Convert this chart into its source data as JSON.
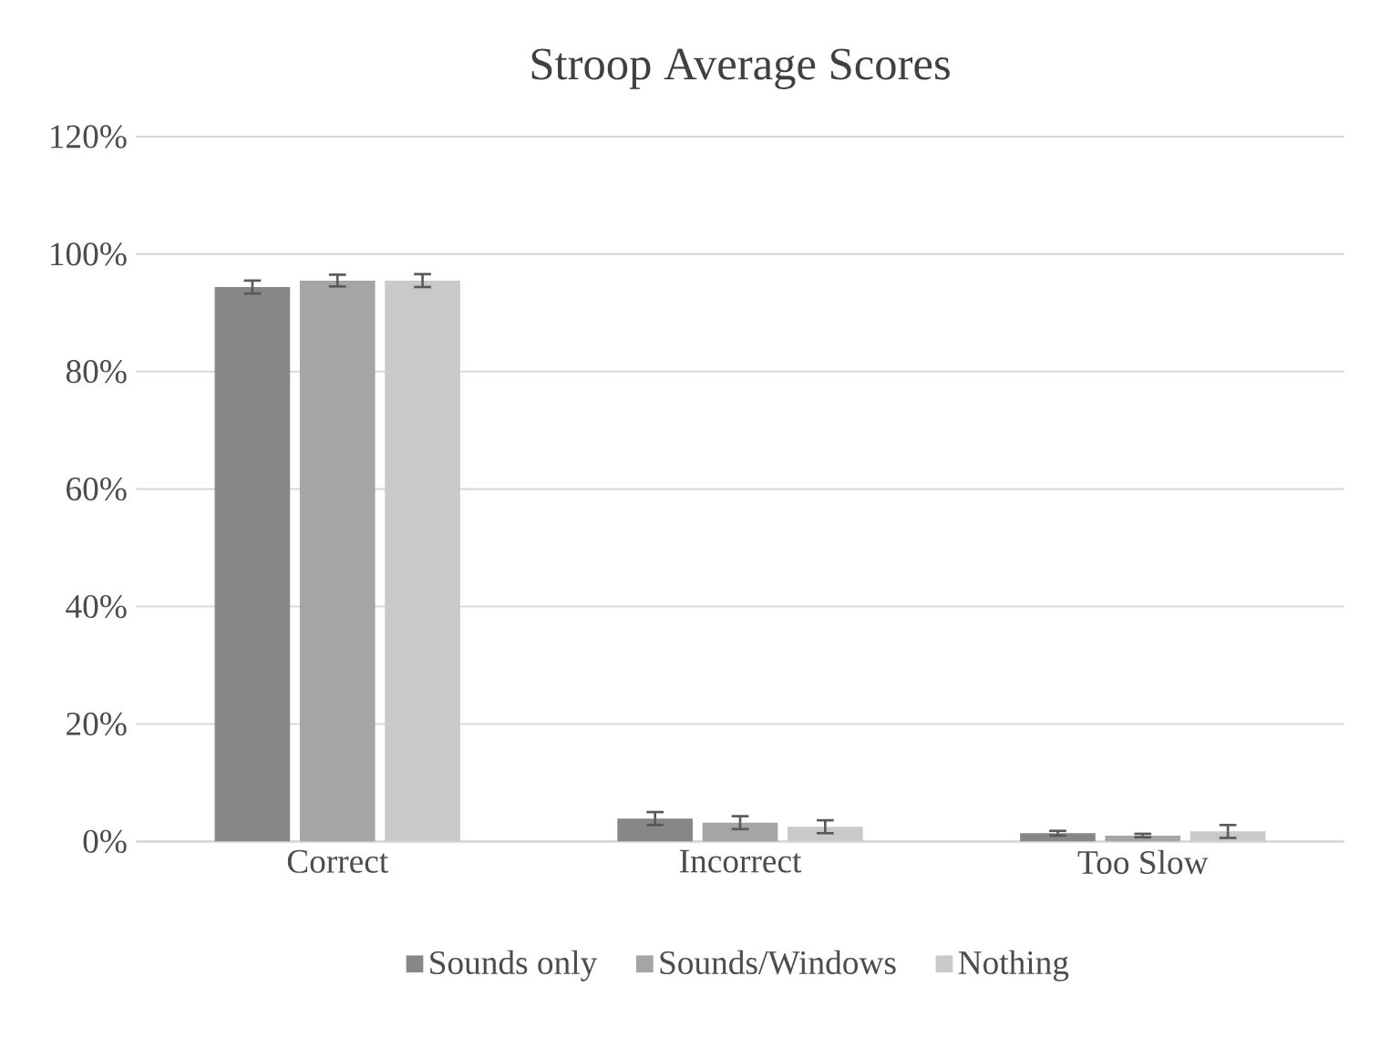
{
  "chart_data": {
    "type": "bar",
    "title": "Stroop Average Scores",
    "categories": [
      "Correct",
      "Incorrect",
      "Too Slow"
    ],
    "series": [
      {
        "name": "Sounds only",
        "color": "#878787",
        "values": [
          94.4,
          3.9,
          1.4
        ],
        "errors": [
          1.1,
          1.1,
          0.4
        ]
      },
      {
        "name": "Sounds/Windows",
        "color": "#a5a5a5",
        "values": [
          95.5,
          3.2,
          1.0
        ],
        "errors": [
          1.0,
          1.1,
          0.3
        ]
      },
      {
        "name": "Nothing",
        "color": "#c9c9c9",
        "values": [
          95.5,
          2.5,
          1.7
        ],
        "errors": [
          1.1,
          1.1,
          1.1
        ]
      }
    ],
    "ylim": [
      0,
      120
    ],
    "yticks": [
      {
        "value": 0,
        "label": "0%"
      },
      {
        "value": 20,
        "label": "20%"
      },
      {
        "value": 40,
        "label": "40%"
      },
      {
        "value": 60,
        "label": "60%"
      },
      {
        "value": 80,
        "label": "80%"
      },
      {
        "value": 100,
        "label": "100%"
      },
      {
        "value": 120,
        "label": "120%"
      }
    ],
    "grid": "y",
    "legend": "bottom"
  }
}
